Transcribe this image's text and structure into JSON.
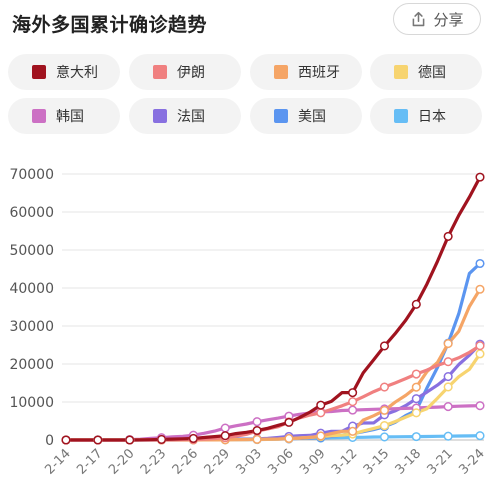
{
  "header": {
    "title": "海外多国累计确诊趋势",
    "share_label": "分享",
    "share_icon": "share-icon"
  },
  "chart_data": {
    "type": "line",
    "title": "海外多国累计确诊趋势",
    "xlabel": "",
    "ylabel": "",
    "x": [
      "2-14",
      "2-15",
      "2-16",
      "2-17",
      "2-18",
      "2-19",
      "2-20",
      "2-21",
      "2-22",
      "2-23",
      "2-24",
      "2-25",
      "2-26",
      "2-27",
      "2-28",
      "2-29",
      "3-01",
      "3-02",
      "3-03",
      "3-04",
      "3-05",
      "3-06",
      "3-07",
      "3-08",
      "3-09",
      "3-10",
      "3-11",
      "3-12",
      "3-13",
      "3-14",
      "3-15",
      "3-16",
      "3-17",
      "3-18",
      "3-19",
      "3-20",
      "3-21",
      "3-22",
      "3-23",
      "3-24"
    ],
    "xticks": [
      "2-14",
      "2-17",
      "2-20",
      "2-23",
      "2-26",
      "2-29",
      "3-03",
      "3-06",
      "3-09",
      "3-12",
      "3-15",
      "3-18",
      "3-21",
      "3-24"
    ],
    "yticks": [
      0,
      10000,
      20000,
      30000,
      40000,
      50000,
      60000,
      70000
    ],
    "ylim": [
      0,
      70000
    ],
    "grid": true,
    "legend_position": "top",
    "series": [
      {
        "name": "意大利",
        "color": "#a0131f",
        "values": [
          3,
          3,
          3,
          3,
          3,
          3,
          3,
          20,
          79,
          150,
          229,
          322,
          400,
          650,
          888,
          1128,
          1694,
          2036,
          2502,
          3089,
          3858,
          4636,
          5883,
          7375,
          9172,
          10149,
          12462,
          12462,
          17660,
          21157,
          24747,
          27980,
          31506,
          35713,
          41035,
          47021,
          53578,
          59138,
          63927,
          69176
        ]
      },
      {
        "name": "伊朗",
        "color": "#f08080",
        "values": [
          0,
          0,
          0,
          0,
          0,
          2,
          5,
          18,
          28,
          43,
          61,
          95,
          139,
          245,
          388,
          593,
          978,
          1501,
          2336,
          2922,
          3513,
          4747,
          5823,
          6566,
          7161,
          8042,
          9000,
          10075,
          11364,
          12729,
          13938,
          14991,
          16169,
          17361,
          18407,
          19644,
          20610,
          21638,
          23049,
          24811
        ]
      },
      {
        "name": "西班牙",
        "color": "#f5a566",
        "values": [
          2,
          2,
          2,
          2,
          2,
          2,
          2,
          2,
          2,
          2,
          2,
          2,
          13,
          15,
          32,
          45,
          84,
          120,
          165,
          222,
          259,
          400,
          500,
          673,
          1073,
          1695,
          2277,
          2277,
          5232,
          6391,
          7798,
          9942,
          11748,
          13910,
          17963,
          20410,
          25374,
          28603,
          35136,
          39673
        ]
      },
      {
        "name": "德国",
        "color": "#f7d470",
        "values": [
          16,
          16,
          16,
          16,
          16,
          16,
          16,
          16,
          16,
          16,
          16,
          16,
          18,
          21,
          26,
          53,
          66,
          117,
          150,
          188,
          240,
          349,
          534,
          684,
          902,
          1139,
          1296,
          1567,
          2369,
          3062,
          3795,
          4838,
          6012,
          7156,
          8198,
          10999,
          13957,
          16662,
          18610,
          22672
        ]
      },
      {
        "name": "韩国",
        "color": "#cc70c4",
        "values": [
          28,
          28,
          29,
          30,
          31,
          46,
          104,
          204,
          433,
          602,
          833,
          977,
          1261,
          1766,
          2337,
          3150,
          3736,
          4212,
          4812,
          5328,
          5766,
          6284,
          6767,
          7134,
          7382,
          7513,
          7755,
          7869,
          7979,
          8086,
          8162,
          8236,
          8320,
          8413,
          8565,
          8652,
          8799,
          8897,
          8961,
          9037
        ]
      },
      {
        "name": "法国",
        "color": "#8870e0",
        "values": [
          12,
          12,
          12,
          12,
          12,
          12,
          12,
          12,
          12,
          12,
          12,
          18,
          38,
          57,
          100,
          130,
          191,
          212,
          285,
          423,
          653,
          949,
          1126,
          1209,
          1784,
          2281,
          2281,
          3661,
          4469,
          4499,
          6633,
          7652,
          9043,
          10871,
          12612,
          14459,
          16689,
          19856,
          22304,
          25233
        ]
      },
      {
        "name": "美国",
        "color": "#5b95f0",
        "values": [
          15,
          15,
          15,
          15,
          15,
          15,
          15,
          15,
          35,
          35,
          35,
          53,
          57,
          60,
          62,
          70,
          76,
          101,
          122,
          153,
          221,
          278,
          417,
          537,
          605,
          959,
          1281,
          1663,
          2179,
          2726,
          3499,
          4632,
          6421,
          7786,
          13680,
          19101,
          25493,
          33276,
          43847,
          46450
        ]
      },
      {
        "name": "日本",
        "color": "#66bdf5",
        "values": [
          33,
          45,
          59,
          66,
          74,
          84,
          94,
          105,
          132,
          144,
          157,
          164,
          186,
          210,
          230,
          239,
          254,
          268,
          284,
          317,
          349,
          408,
          455,
          488,
          514,
          568,
          620,
          675,
          716,
          780,
          814,
          829,
          878,
          889,
          924,
          963,
          1007,
          1054,
          1089,
          1128
        ]
      }
    ]
  }
}
